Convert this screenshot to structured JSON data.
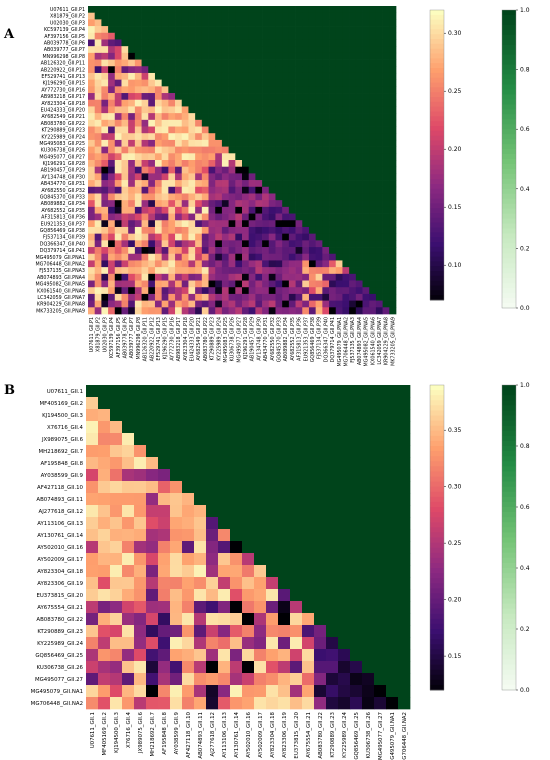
{
  "chart_data": [
    {
      "type": "heatmap",
      "panel_label": "A",
      "labels": [
        "U07611_GII.P1",
        "X81879_GII.P2",
        "U02030_GII.P3",
        "KC597139_GII.P4",
        "AF397156_GII.P5",
        "AB039778_GII.P6",
        "AB039777_GII.P7",
        "MN996298_GII.P8",
        "AB126320_GII.P11",
        "AB220922_GII.P12",
        "EF529741_GII.P13",
        "KJ196290_GII.P15",
        "AY772730_GII.P16",
        "AB983218_GII.P17",
        "AY823304_GII.P18",
        "EU424333_GII.P20",
        "AY682549_GII.P21",
        "AB083780_GII.P22",
        "KT290889_GII.P23",
        "KY225989_GII.P24",
        "MG495083_GII.P25",
        "KU306738_GII.P26",
        "MG495077_GII.P27",
        "KJ196291_GII.P28",
        "AB190457_GII.P29",
        "AY134748_GII.P30",
        "AB434770_GII.P31",
        "AY682550_GII.P32",
        "GQ845370_GII.P33",
        "AB089882_GII.P34",
        "AY682552_GII.P35",
        "AF315813_GII.P36",
        "EU921353_GII.P37",
        "GQ856469_GII.P38",
        "FJ537134_GII.P39",
        "DQ366347_GII.P40",
        "DQ379714_GII.P41",
        "MG495079_GII.PNA1",
        "MG706448_GII.PNA2",
        "FJ537135_GII.PNA3",
        "AB074893_GII.PNA4",
        "MG495082_GII.PNA5",
        "KX061540_GII.PNA6",
        "LC342059_GII.PNA7",
        "KR904229_GII.PNA8",
        "MK733205_GII.PNA9"
      ],
      "value_range": [
        0.07,
        0.32
      ],
      "value_colorbar_ticks": [
        "0.10",
        "0.15",
        "0.20",
        "0.25",
        "0.30"
      ],
      "upper_triangle_colorbar_ticks": [
        "0.0",
        "0.2",
        "0.4",
        "0.6",
        "0.8",
        "1.0"
      ],
      "low_rows": [
        5,
        7,
        9,
        13,
        24,
        25,
        27,
        29,
        30,
        31,
        32,
        34,
        35,
        36,
        37,
        38,
        40,
        41,
        42,
        43,
        44,
        45
      ],
      "low_cols": [
        2,
        3,
        4,
        6,
        8,
        9,
        18,
        19,
        20,
        21,
        22,
        23,
        24,
        25,
        26,
        27,
        28,
        29,
        30,
        31,
        33,
        35,
        36,
        37,
        38,
        39,
        40
      ],
      "blocks": [
        {
          "rows": [
            24,
            45
          ],
          "cols": [
            18,
            31
          ],
          "value": 0.16
        },
        {
          "rows": [
            30,
            37
          ],
          "cols": [
            24,
            36
          ],
          "value": 0.13
        },
        {
          "rows": [
            40,
            45
          ],
          "cols": [
            36,
            44
          ],
          "value": 0.12
        }
      ]
    },
    {
      "type": "heatmap",
      "panel_label": "B",
      "labels": [
        "U07611_GII.1",
        "MF405169_GII.2",
        "KJ194500_GII.3",
        "X76716_GII.4",
        "JX989075_GII.6",
        "MH218692_GII.7",
        "AF195848_GII.8",
        "AY038599_GII.9",
        "AF427118_GII.10",
        "AB074893_GII.11",
        "AJ277618_GII.12",
        "AY113106_GII.13",
        "AY130761_GII.14",
        "AY502010_GII.16",
        "AY502009_GII.17",
        "AY823304_GII.18",
        "AY823306_GII.19",
        "EU373815_GII.20",
        "AY675554_GII.21",
        "AB083780_GII.22",
        "KT290889_GII.23",
        "KY225989_GII.24",
        "GQ856469_GII.25",
        "KU306738_GII.26",
        "MG495077_GII.27",
        "MG495079_GII.NA1",
        "MG706448_GII.NA2"
      ],
      "value_range": [
        0.12,
        0.39
      ],
      "value_colorbar_ticks": [
        "0.15",
        "0.20",
        "0.25",
        "0.30",
        "0.35"
      ],
      "upper_triangle_colorbar_ticks": [
        "0.0",
        "0.2",
        "0.4",
        "0.6",
        "0.8",
        "1.0"
      ],
      "low_rows": [
        7,
        13,
        16,
        18,
        19,
        20,
        21,
        22,
        23,
        24,
        25,
        26
      ],
      "low_cols": [
        5,
        6,
        10,
        12,
        13,
        16,
        19,
        20,
        21,
        22,
        23,
        24,
        25
      ],
      "blocks": [
        {
          "rows": [
            19,
            26
          ],
          "cols": [
            19,
            25
          ],
          "value": 0.19
        },
        {
          "rows": [
            21,
            26
          ],
          "cols": [
            20,
            25
          ],
          "value": 0.15
        },
        {
          "rows": [
            23,
            26
          ],
          "cols": [
            22,
            25
          ],
          "value": 0.13
        }
      ]
    }
  ],
  "colors": {
    "upper_triangle": "#00441b",
    "heat_scale": [
      "#000004",
      "#3b0f70",
      "#8c2981",
      "#de4968",
      "#fe9f6d",
      "#fcfdbf"
    ],
    "green_scale": [
      "#f7fcf5",
      "#c7e9c0",
      "#74c476",
      "#238b45",
      "#00441b"
    ]
  }
}
